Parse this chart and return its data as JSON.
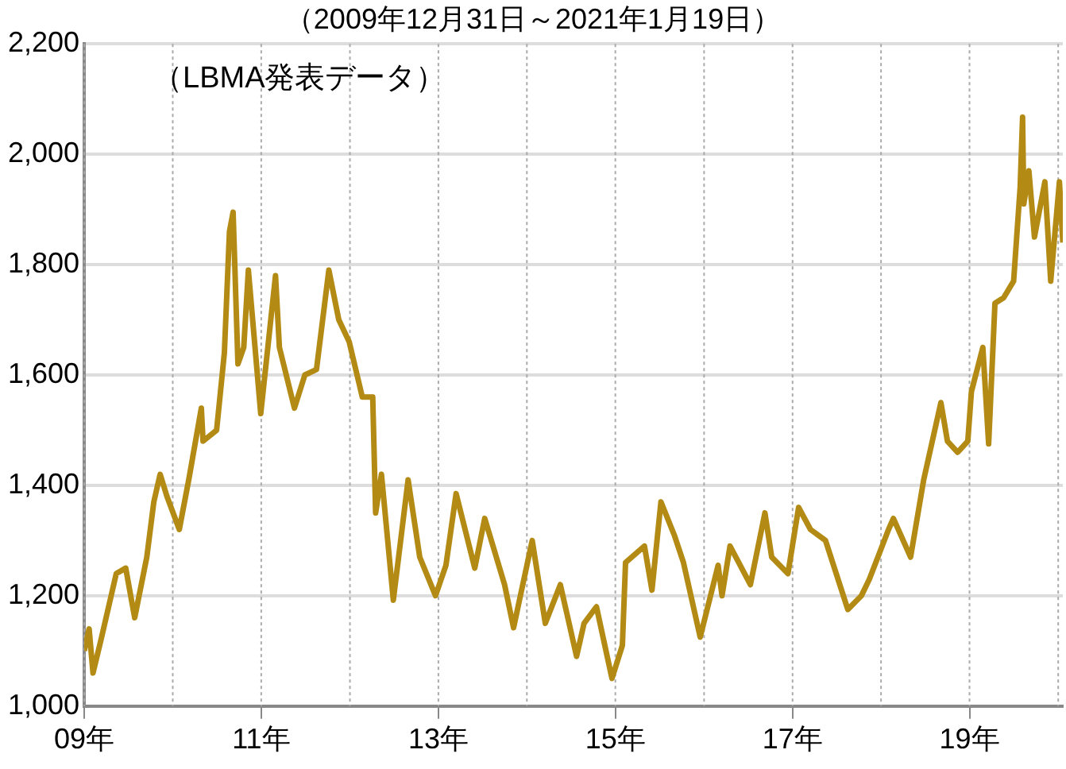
{
  "chart_data": {
    "type": "line",
    "title": "（2009年12月31日～2021年1月19日）",
    "annotations": [
      "（LBMA発表データ）"
    ],
    "x": [
      "2009-12-31",
      "2010-01-20",
      "2010-02-05",
      "2010-03-10",
      "2010-05-12",
      "2010-06-20",
      "2010-07-27",
      "2010-09-15",
      "2010-10-14",
      "2010-11-09",
      "2010-12-07",
      "2011-01-27",
      "2011-03-07",
      "2011-04-28",
      "2011-05-05",
      "2011-06-30",
      "2011-08-01",
      "2011-08-22",
      "2011-09-06",
      "2011-09-26",
      "2011-10-20",
      "2011-11-08",
      "2011-12-29",
      "2012-02-28",
      "2012-03-15",
      "2012-05-16",
      "2012-06-28",
      "2012-08-15",
      "2012-10-05",
      "2012-11-15",
      "2012-12-28",
      "2013-02-20",
      "2013-04-04",
      "2013-04-16",
      "2013-05-10",
      "2013-06-28",
      "2013-08-28",
      "2013-10-15",
      "2013-12-19",
      "2014-01-31",
      "2014-03-14",
      "2014-05-30",
      "2014-07-10",
      "2014-09-30",
      "2014-11-06",
      "2015-01-22",
      "2015-03-17",
      "2015-05-18",
      "2015-07-24",
      "2015-08-24",
      "2015-10-14",
      "2015-12-17",
      "2016-01-29",
      "2016-02-11",
      "2016-04-29",
      "2016-05-30",
      "2016-07-06",
      "2016-08-30",
      "2016-10-07",
      "2016-12-15",
      "2017-02-27",
      "2017-03-15",
      "2017-04-17",
      "2017-07-10",
      "2017-09-08",
      "2017-10-06",
      "2017-12-12",
      "2018-01-25",
      "2018-03-15",
      "2018-05-16",
      "2018-08-16",
      "2018-10-11",
      "2018-11-13",
      "2019-01-31",
      "2019-02-20",
      "2019-05-02",
      "2019-06-25",
      "2019-09-04",
      "2019-10-01",
      "2019-11-12",
      "2019-12-24",
      "2020-01-08",
      "2020-02-24",
      "2020-03-19",
      "2020-04-14",
      "2020-05-20",
      "2020-06-30",
      "2020-07-27",
      "2020-08-06",
      "2020-08-11",
      "2020-09-01",
      "2020-09-24",
      "2020-11-06",
      "2020-11-30",
      "2021-01-05",
      "2021-01-19"
    ],
    "series": [
      {
        "color": "#b38b14",
        "values": [
          1100,
          1140,
          1060,
          1120,
          1240,
          1250,
          1160,
          1270,
          1370,
          1420,
          1380,
          1320,
          1410,
          1540,
          1480,
          1500,
          1640,
          1860,
          1895,
          1620,
          1650,
          1790,
          1530,
          1780,
          1650,
          1540,
          1600,
          1610,
          1790,
          1700,
          1660,
          1560,
          1560,
          1350,
          1420,
          1192,
          1410,
          1270,
          1200,
          1255,
          1385,
          1250,
          1340,
          1220,
          1142,
          1300,
          1150,
          1220,
          1090,
          1150,
          1180,
          1050,
          1110,
          1260,
          1290,
          1210,
          1370,
          1310,
          1260,
          1125,
          1255,
          1200,
          1290,
          1220,
          1350,
          1270,
          1240,
          1360,
          1320,
          1300,
          1175,
          1200,
          1230,
          1320,
          1340,
          1270,
          1410,
          1550,
          1480,
          1460,
          1480,
          1570,
          1650,
          1475,
          1730,
          1740,
          1770,
          1940,
          2067,
          1910,
          1970,
          1850,
          1950,
          1770,
          1950,
          1840
        ]
      }
    ],
    "xlim": [
      "2009-12-31",
      "2021-01-19"
    ],
    "xticks": [
      {
        "value": "2009-12-31",
        "label": "09年"
      },
      {
        "value": "2010-12-31",
        "label": null
      },
      {
        "value": "2011-12-31",
        "label": "11年"
      },
      {
        "value": "2012-12-31",
        "label": null
      },
      {
        "value": "2013-12-31",
        "label": "13年"
      },
      {
        "value": "2014-12-31",
        "label": null
      },
      {
        "value": "2015-12-31",
        "label": "15年"
      },
      {
        "value": "2016-12-31",
        "label": null
      },
      {
        "value": "2017-12-31",
        "label": "17年"
      },
      {
        "value": "2018-12-31",
        "label": null
      },
      {
        "value": "2019-12-31",
        "label": "19年"
      },
      {
        "value": "2020-12-31",
        "label": null
      }
    ],
    "ylim": [
      1000,
      2200
    ],
    "yticks": [
      {
        "value": 1000,
        "label": "1,000"
      },
      {
        "value": 1200,
        "label": "1,200"
      },
      {
        "value": 1400,
        "label": "1,400"
      },
      {
        "value": 1600,
        "label": "1,600"
      },
      {
        "value": 1800,
        "label": "1,800"
      },
      {
        "value": 2000,
        "label": "2,000"
      },
      {
        "value": 2200,
        "label": "2,200"
      }
    ],
    "grid": true,
    "legend": false,
    "marker": "none",
    "line_style": "solid"
  }
}
